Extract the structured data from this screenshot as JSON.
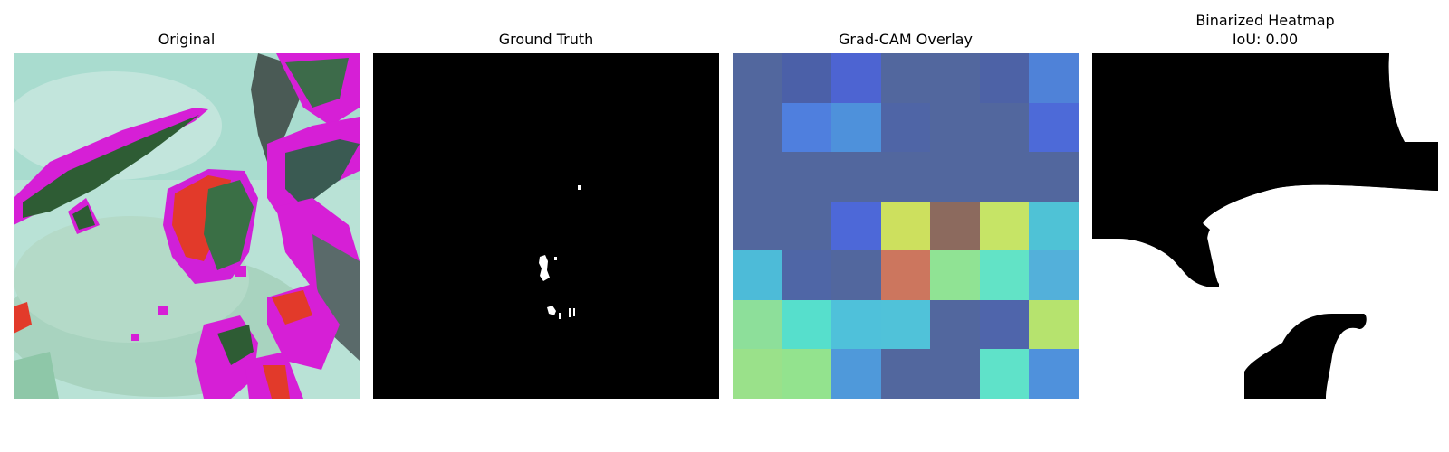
{
  "panels": [
    {
      "title": "Original"
    },
    {
      "title": "Ground Truth"
    },
    {
      "title": "Grad-CAM Overlay",
      "grid_colors": [
        [
          "#52679e",
          "#4b60a8",
          "#4d64d2",
          "#52679e",
          "#52679e",
          "#4d62a6",
          "#4f82d8"
        ],
        [
          "#52679e",
          "#4f7fde",
          "#4e91db",
          "#4f65a6",
          "#52679e",
          "#52679e",
          "#4d6ad8"
        ],
        [
          "#52679e",
          "#52679e",
          "#52679e",
          "#52679e",
          "#52679e",
          "#52679e",
          "#52679e"
        ],
        [
          "#52679e",
          "#52679e",
          "#4d68d8",
          "#cde05e",
          "#8c6a5e",
          "#c6e466",
          "#4fc2d6"
        ],
        [
          "#4dbbd8",
          "#4f66a6",
          "#52679e",
          "#cc765e",
          "#90e394",
          "#62e3c6",
          "#53b0da"
        ],
        [
          "#8ddf9a",
          "#56dfcc",
          "#4fc1da",
          "#50c2d9",
          "#52679e",
          "#4f65ab",
          "#b6e36e"
        ],
        [
          "#9ae18a",
          "#93e38e",
          "#4f99da",
          "#52679e",
          "#52679e",
          "#5fe2c9",
          "#4f91dc"
        ]
      ]
    },
    {
      "title_line1": "Binarized Heatmap",
      "title_line2": "IoU: 0.00"
    }
  ]
}
